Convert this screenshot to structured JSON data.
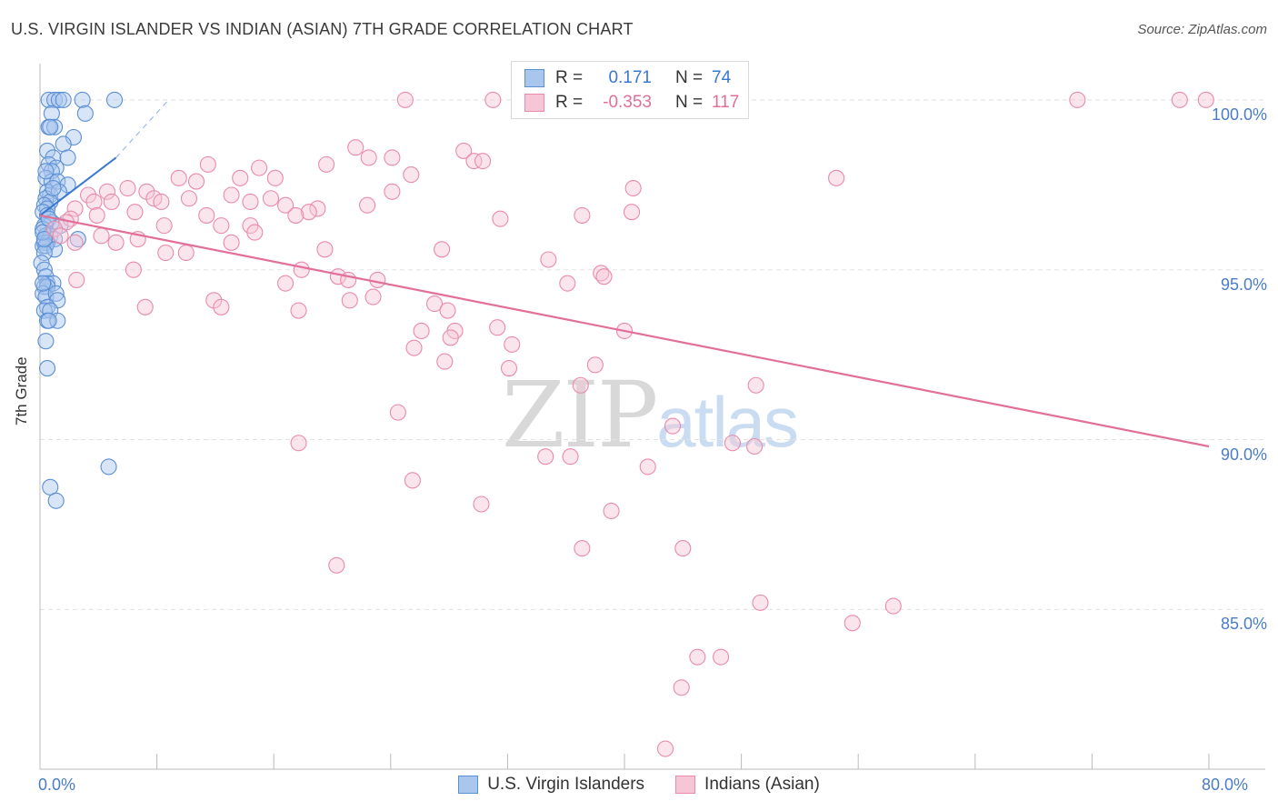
{
  "title": "U.S. VIRGIN ISLANDER VS INDIAN (ASIAN) 7TH GRADE CORRELATION CHART",
  "source": "Source: ZipAtlas.com",
  "watermark": {
    "zip": "ZIP",
    "atlas": "atlas"
  },
  "colors": {
    "blue": "#5b8fd4",
    "blue_fill": "#a8c6ee",
    "blue_line": "#3a78d0",
    "pink": "#e98aac",
    "pink_fill": "#f7c6d6",
    "pink_line": "#e26f98",
    "tick_label": "#4a7cc7",
    "grid": "#e3e3e3"
  },
  "stats": [
    {
      "label": "R =",
      "r": "0.171",
      "n_label": "N =",
      "n": "74",
      "color": "#3a78d0"
    },
    {
      "label": "R =",
      "r": "-0.353",
      "n_label": "N =",
      "n": "117",
      "color": "#e26f98"
    }
  ],
  "legend": [
    {
      "label": "U.S. Virgin Islanders",
      "color": "#5b8fd4"
    },
    {
      "label": "Indians (Asian)",
      "color": "#e98aac"
    }
  ],
  "chart_data": {
    "type": "scatter",
    "title": "U.S. VIRGIN ISLANDER VS INDIAN (ASIAN) 7TH GRADE CORRELATION CHART",
    "xlabel": "",
    "ylabel": "7th Grade",
    "xlim": [
      0,
      80
    ],
    "ylim": [
      80.7,
      100.8
    ],
    "x_tick_labels": [
      "0.0%",
      "80.0%"
    ],
    "y_ticks": [
      85,
      90,
      95,
      100
    ],
    "y_tick_labels": [
      "85.0%",
      "90.0%",
      "95.0%",
      "100.0%"
    ],
    "grid": "horizontal dashed",
    "legend_position": "bottom",
    "series": [
      {
        "name": "U.S. Virgin Islanders",
        "trend": {
          "x": [
            0.0,
            5.2
          ],
          "y": [
            96.6,
            98.3
          ],
          "dashed_to": [
            8.8,
            100.0
          ]
        },
        "points": [
          [
            0.6,
            100.0
          ],
          [
            1.0,
            100.0
          ],
          [
            1.3,
            100.0
          ],
          [
            1.6,
            100.0
          ],
          [
            2.9,
            100.0
          ],
          [
            5.1,
            100.0
          ],
          [
            0.8,
            99.6
          ],
          [
            3.1,
            99.6
          ],
          [
            0.6,
            99.2
          ],
          [
            1.0,
            99.2
          ],
          [
            2.3,
            98.9
          ],
          [
            1.6,
            98.7
          ],
          [
            0.5,
            98.5
          ],
          [
            0.9,
            98.3
          ],
          [
            1.9,
            98.3
          ],
          [
            0.6,
            98.1
          ],
          [
            1.1,
            98.0
          ],
          [
            0.8,
            97.9
          ],
          [
            0.4,
            97.7
          ],
          [
            0.8,
            97.6
          ],
          [
            1.2,
            97.6
          ],
          [
            1.9,
            97.5
          ],
          [
            0.5,
            97.3
          ],
          [
            0.7,
            97.2
          ],
          [
            1.3,
            97.3
          ],
          [
            0.4,
            97.1
          ],
          [
            0.7,
            97.0
          ],
          [
            0.3,
            96.9
          ],
          [
            0.5,
            96.8
          ],
          [
            0.2,
            96.7
          ],
          [
            0.5,
            96.6
          ],
          [
            0.8,
            96.4
          ],
          [
            0.3,
            96.3
          ],
          [
            0.2,
            96.2
          ],
          [
            0.4,
            96.0
          ],
          [
            0.7,
            96.0
          ],
          [
            1.0,
            95.9
          ],
          [
            2.6,
            95.9
          ],
          [
            0.3,
            95.8
          ],
          [
            0.5,
            95.8
          ],
          [
            0.2,
            95.7
          ],
          [
            0.4,
            95.7
          ],
          [
            1.0,
            95.6
          ],
          [
            0.3,
            95.5
          ],
          [
            0.1,
            95.2
          ],
          [
            0.3,
            95.0
          ],
          [
            0.4,
            94.8
          ],
          [
            0.5,
            94.6
          ],
          [
            0.9,
            94.6
          ],
          [
            0.3,
            94.5
          ],
          [
            0.5,
            94.5
          ],
          [
            0.2,
            94.3
          ],
          [
            0.4,
            94.2
          ],
          [
            1.1,
            94.3
          ],
          [
            1.2,
            94.1
          ],
          [
            0.5,
            93.9
          ],
          [
            0.3,
            93.8
          ],
          [
            0.7,
            93.8
          ],
          [
            0.5,
            93.5
          ],
          [
            1.2,
            93.5
          ],
          [
            0.6,
            93.5
          ],
          [
            0.4,
            92.9
          ],
          [
            0.5,
            92.1
          ],
          [
            4.7,
            89.2
          ],
          [
            0.7,
            88.6
          ],
          [
            1.1,
            88.2
          ],
          [
            0.2,
            96.1
          ],
          [
            0.6,
            96.5
          ],
          [
            0.9,
            97.4
          ],
          [
            0.2,
            94.6
          ],
          [
            0.7,
            99.2
          ],
          [
            0.3,
            95.9
          ],
          [
            1.4,
            96.3
          ],
          [
            0.4,
            97.9
          ]
        ]
      },
      {
        "name": "Indians (Asian)",
        "trend": {
          "x": [
            0.0,
            80.0
          ],
          "y": [
            96.6,
            89.8
          ]
        },
        "points": [
          [
            25.0,
            100.0
          ],
          [
            31.0,
            100.0
          ],
          [
            46.0,
            100.0
          ],
          [
            47.0,
            100.0
          ],
          [
            71.0,
            100.0
          ],
          [
            78.0,
            100.0
          ],
          [
            79.8,
            100.0
          ],
          [
            21.6,
            98.6
          ],
          [
            22.5,
            98.3
          ],
          [
            24.1,
            98.3
          ],
          [
            29.0,
            98.5
          ],
          [
            29.7,
            98.2
          ],
          [
            19.6,
            98.1
          ],
          [
            11.5,
            98.1
          ],
          [
            15.0,
            98.0
          ],
          [
            30.3,
            98.2
          ],
          [
            25.4,
            97.8
          ],
          [
            9.5,
            97.7
          ],
          [
            13.7,
            97.7
          ],
          [
            16.1,
            97.7
          ],
          [
            54.5,
            97.7
          ],
          [
            10.7,
            97.6
          ],
          [
            40.6,
            97.4
          ],
          [
            6.0,
            97.4
          ],
          [
            4.6,
            97.3
          ],
          [
            24.1,
            97.3
          ],
          [
            7.3,
            97.3
          ],
          [
            3.3,
            97.2
          ],
          [
            13.1,
            97.2
          ],
          [
            10.2,
            97.1
          ],
          [
            15.8,
            97.1
          ],
          [
            7.8,
            97.1
          ],
          [
            8.3,
            97.0
          ],
          [
            3.7,
            97.0
          ],
          [
            4.9,
            97.0
          ],
          [
            14.4,
            97.0
          ],
          [
            16.8,
            96.9
          ],
          [
            22.4,
            96.9
          ],
          [
            2.4,
            96.8
          ],
          [
            19.0,
            96.8
          ],
          [
            6.5,
            96.7
          ],
          [
            18.4,
            96.7
          ],
          [
            40.5,
            96.7
          ],
          [
            11.4,
            96.6
          ],
          [
            37.1,
            96.6
          ],
          [
            17.5,
            96.6
          ],
          [
            2.1,
            96.5
          ],
          [
            31.5,
            96.5
          ],
          [
            1.8,
            96.4
          ],
          [
            12.4,
            96.3
          ],
          [
            8.5,
            96.3
          ],
          [
            14.4,
            96.3
          ],
          [
            1.0,
            96.2
          ],
          [
            14.7,
            96.1
          ],
          [
            1.4,
            96.0
          ],
          [
            4.2,
            96.0
          ],
          [
            6.7,
            95.9
          ],
          [
            5.2,
            95.8
          ],
          [
            13.1,
            95.8
          ],
          [
            2.4,
            95.8
          ],
          [
            19.5,
            95.6
          ],
          [
            27.5,
            95.6
          ],
          [
            8.6,
            95.5
          ],
          [
            10.0,
            95.5
          ],
          [
            34.8,
            95.3
          ],
          [
            6.4,
            95.0
          ],
          [
            17.9,
            95.0
          ],
          [
            38.4,
            94.9
          ],
          [
            20.4,
            94.8
          ],
          [
            23.1,
            94.7
          ],
          [
            38.6,
            94.8
          ],
          [
            21.1,
            94.7
          ],
          [
            2.5,
            94.7
          ],
          [
            16.8,
            94.6
          ],
          [
            36.1,
            94.6
          ],
          [
            22.8,
            94.2
          ],
          [
            21.2,
            94.1
          ],
          [
            11.9,
            94.1
          ],
          [
            27.0,
            94.0
          ],
          [
            7.2,
            93.9
          ],
          [
            12.4,
            93.9
          ],
          [
            17.7,
            93.8
          ],
          [
            27.9,
            93.8
          ],
          [
            31.3,
            93.3
          ],
          [
            26.1,
            93.2
          ],
          [
            28.4,
            93.2
          ],
          [
            40.0,
            93.2
          ],
          [
            28.1,
            93.0
          ],
          [
            32.3,
            92.8
          ],
          [
            25.6,
            92.7
          ],
          [
            27.7,
            92.3
          ],
          [
            38.0,
            92.2
          ],
          [
            32.1,
            92.1
          ],
          [
            37.0,
            91.6
          ],
          [
            49.0,
            91.6
          ],
          [
            24.5,
            90.8
          ],
          [
            43.3,
            90.4
          ],
          [
            17.7,
            89.9
          ],
          [
            47.4,
            89.9
          ],
          [
            48.9,
            89.8
          ],
          [
            34.6,
            89.5
          ],
          [
            36.3,
            89.5
          ],
          [
            41.6,
            89.2
          ],
          [
            25.5,
            88.8
          ],
          [
            30.2,
            88.1
          ],
          [
            39.1,
            87.9
          ],
          [
            37.1,
            86.8
          ],
          [
            44.0,
            86.8
          ],
          [
            20.3,
            86.3
          ],
          [
            49.3,
            85.2
          ],
          [
            58.4,
            85.1
          ],
          [
            55.6,
            84.6
          ],
          [
            45.0,
            83.6
          ],
          [
            46.6,
            83.6
          ],
          [
            43.9,
            82.7
          ],
          [
            42.8,
            80.9
          ],
          [
            3.9,
            96.6
          ]
        ]
      }
    ]
  }
}
